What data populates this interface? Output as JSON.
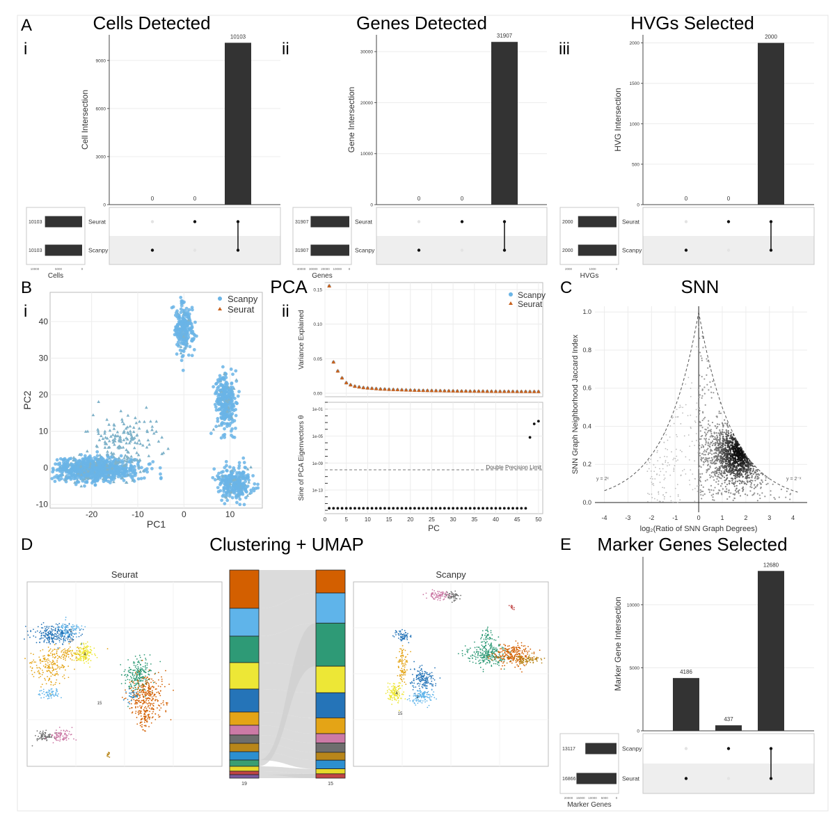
{
  "panel_letters": [
    "A",
    "B",
    "C",
    "D",
    "E"
  ],
  "subpanel_labels": [
    "i",
    "ii",
    "iii",
    "i",
    "ii"
  ],
  "section_titles": {
    "cells": "Cells Detected",
    "genes": "Genes Detected",
    "hvgs": "HVGs Selected",
    "pca": "PCA",
    "snn": "SNN",
    "clustering": "Clustering + UMAP",
    "markers": "Marker Genes Selected"
  },
  "colors": {
    "bar": "#333333",
    "scanpy": "#6ab4e6",
    "seurat": "#c8621e",
    "grid": "#ececec",
    "shade": "#eeeeee"
  },
  "chart_data": [
    {
      "id": "upset_cells",
      "type": "bar",
      "title": "Cells Detected",
      "ylabel": "Cell Intersection",
      "xlabel": "Cells",
      "ylim": [
        0,
        10600
      ],
      "yticks": [
        0,
        3000,
        6000,
        9000
      ],
      "categories": [
        "Scanpy only",
        "Seurat only",
        "Both"
      ],
      "values": [
        0,
        0,
        10103
      ],
      "set_names": [
        "Seurat",
        "Scanpy"
      ],
      "set_sizes": [
        10103,
        10103
      ],
      "set_ticks": [
        "10000",
        "5000",
        "0"
      ]
    },
    {
      "id": "upset_genes",
      "type": "bar",
      "title": "Genes Detected",
      "ylabel": "Gene Intersection",
      "xlabel": "Genes",
      "ylim": [
        0,
        33300
      ],
      "yticks": [
        0,
        10000,
        20000,
        30000
      ],
      "categories": [
        "Scanpy only",
        "Seurat only",
        "Both"
      ],
      "values": [
        0,
        0,
        31907
      ],
      "set_names": [
        "Seurat",
        "Scanpy"
      ],
      "set_sizes": [
        31907,
        31907
      ],
      "set_ticks": [
        "40000",
        "30000",
        "20000",
        "10000",
        "0"
      ]
    },
    {
      "id": "upset_hvgs",
      "type": "bar",
      "title": "HVGs Selected",
      "ylabel": "HVG Intersection",
      "xlabel": "HVGs",
      "ylim": [
        0,
        2100
      ],
      "yticks": [
        0,
        500,
        1000,
        1500,
        2000
      ],
      "categories": [
        "Scanpy only",
        "Seurat only",
        "Both"
      ],
      "values": [
        0,
        0,
        2000
      ],
      "set_names": [
        "Seurat",
        "Scanpy"
      ],
      "set_sizes": [
        2000,
        2000
      ],
      "set_ticks": [
        "2000",
        "1000",
        "0"
      ]
    },
    {
      "id": "pca_scatter",
      "type": "scatter",
      "xlabel": "PC1",
      "ylabel": "PC2",
      "xlim": [
        -29,
        17
      ],
      "ylim": [
        -11,
        48
      ],
      "xticks": [
        -20,
        -10,
        0,
        10
      ],
      "yticks": [
        -10,
        0,
        10,
        20,
        30,
        40
      ],
      "legend": [
        "Scanpy",
        "Seurat"
      ],
      "clusters": [
        {
          "label": "large left cluster",
          "cx": -19,
          "cy": -0.5,
          "sx": 4.5,
          "sy": 1.6
        },
        {
          "label": "top cluster",
          "cx": 0,
          "cy": 38,
          "sx": 1.0,
          "sy": 3.5
        },
        {
          "label": "mid-right cluster",
          "cx": 9,
          "cy": 18,
          "sx": 1.1,
          "sy": 3.5
        },
        {
          "label": "bottom-right cluster",
          "cx": 11,
          "cy": -4,
          "sx": 2.0,
          "sy": 2.2
        },
        {
          "label": "mid scatter",
          "cx": -13,
          "cy": 7,
          "sx": 3.5,
          "sy": 4
        }
      ]
    },
    {
      "id": "pca_variance",
      "type": "scatter",
      "xlabel": "PC",
      "ylabel": "Variance Explained",
      "xlim": [
        0,
        51
      ],
      "ylim": [
        -0.005,
        0.16
      ],
      "xticks": [
        0,
        5,
        10,
        15,
        20,
        25,
        30,
        35,
        40,
        45,
        50
      ],
      "yticks": [
        0.0,
        0.05,
        0.1,
        0.15
      ],
      "ytick_labels": [
        "0.00",
        "0.05",
        "0.10",
        "0.15"
      ],
      "x": [
        1,
        2,
        3,
        4,
        5,
        6,
        7,
        8,
        9,
        10,
        11,
        12,
        13,
        14,
        15,
        16,
        17,
        18,
        19,
        20,
        21,
        22,
        23,
        24,
        25,
        26,
        27,
        28,
        29,
        30,
        31,
        32,
        33,
        34,
        35,
        36,
        37,
        38,
        39,
        40,
        41,
        42,
        43,
        44,
        45,
        46,
        47,
        48,
        49,
        50
      ],
      "values": [
        0.155,
        0.045,
        0.032,
        0.022,
        0.015,
        0.012,
        0.01,
        0.009,
        0.008,
        0.0075,
        0.007,
        0.0065,
        0.006,
        0.0058,
        0.0055,
        0.0052,
        0.005,
        0.0048,
        0.0046,
        0.0044,
        0.0042,
        0.004,
        0.0039,
        0.0038,
        0.0037,
        0.0036,
        0.0035,
        0.0034,
        0.0033,
        0.0032,
        0.0031,
        0.003,
        0.003,
        0.0029,
        0.0029,
        0.0028,
        0.0028,
        0.0027,
        0.0027,
        0.0026,
        0.0026,
        0.0025,
        0.0025,
        0.0025,
        0.0024,
        0.0024,
        0.0024,
        0.0023,
        0.0023,
        0.0023
      ]
    },
    {
      "id": "pca_sine",
      "type": "scatter",
      "xlabel": "PC",
      "ylabel": "Sine of PCA Eigenvectors θ",
      "xlim": [
        0,
        51
      ],
      "ylim_log10": [
        -16.5,
        0
      ],
      "ytick_labels": [
        "1e-01",
        "1e-05",
        "1e-09",
        "1e-13"
      ],
      "ytick_log10": [
        -1,
        -5,
        -9,
        -13
      ],
      "reference_line_log10": -10,
      "reference_label": "Double Precision Limit",
      "x": [
        1,
        2,
        3,
        4,
        5,
        6,
        7,
        8,
        9,
        10,
        11,
        12,
        13,
        14,
        15,
        16,
        17,
        18,
        19,
        20,
        21,
        22,
        23,
        24,
        25,
        26,
        27,
        28,
        29,
        30,
        31,
        32,
        33,
        34,
        35,
        36,
        37,
        38,
        39,
        40,
        41,
        42,
        43,
        44,
        45,
        46,
        47,
        48,
        49,
        50
      ],
      "log10_values": [
        -15.7,
        -15.7,
        -15.7,
        -15.7,
        -15.7,
        -15.7,
        -15.7,
        -15.7,
        -15.7,
        -15.7,
        -15.7,
        -15.7,
        -15.7,
        -15.7,
        -15.7,
        -15.7,
        -15.7,
        -15.7,
        -15.7,
        -15.7,
        -15.7,
        -15.7,
        -15.7,
        -15.7,
        -15.7,
        -15.7,
        -15.7,
        -15.7,
        -15.7,
        -15.7,
        -15.7,
        -15.7,
        -15.7,
        -15.7,
        -15.7,
        -15.7,
        -15.7,
        -15.7,
        -15.7,
        -15.7,
        -15.7,
        -15.7,
        -15.7,
        -15.7,
        -15.7,
        -15.7,
        -15.7,
        -5.2,
        -3.2,
        -2.8
      ]
    },
    {
      "id": "snn",
      "type": "scatter",
      "xlabel": "log₂(Ratio of SNN Graph Degrees)",
      "ylabel": "SNN Graph Neighborhood Jaccard Index",
      "xlim": [
        -4.4,
        4.6
      ],
      "ylim": [
        0,
        1.03
      ],
      "xticks": [
        -4,
        -3,
        -2,
        -1,
        0,
        1,
        2,
        3,
        4
      ],
      "yticks": [
        0.0,
        0.2,
        0.4,
        0.6,
        0.8,
        1.0
      ],
      "ytick_labels": [
        "0.0",
        "0.2",
        "0.4",
        "0.6",
        "0.8",
        "1.0"
      ],
      "curve_left_label": "y = 2ˣ",
      "curve_right_label": "y = 2⁻ˣ",
      "density_peak": {
        "x": 1.7,
        "y": 0.26
      }
    },
    {
      "id": "umap_seurat",
      "type": "scatter",
      "title": "Seurat",
      "cluster_labels": [
        "2",
        "4",
        "15",
        "10"
      ]
    },
    {
      "id": "alluvial",
      "type": "bar",
      "left_total_label": "19",
      "right_total_label": "15",
      "left_colors": [
        "#d35f00",
        "#5fb4ea",
        "#2e9a76",
        "#ede736",
        "#2574b8",
        "#e4a416",
        "#cc7aa6",
        "#6e6e6e",
        "#b8861a",
        "#2c8fd0",
        "#3a9e72",
        "#e6d82a",
        "#c04444",
        "#7a5a9e"
      ],
      "left_values": [
        55,
        40,
        38,
        38,
        33,
        19,
        14,
        12,
        12,
        12,
        9,
        7,
        5,
        5
      ],
      "right_colors": [
        "#d35f00",
        "#5fb4ea",
        "#2e9a76",
        "#ede736",
        "#2574b8",
        "#e4a416",
        "#cc7aa6",
        "#6e6e6e",
        "#b8861a",
        "#2c8fd0",
        "#e6d82a",
        "#c04444"
      ],
      "right_values": [
        32,
        42,
        60,
        37,
        35,
        22,
        13,
        13,
        11,
        12,
        7,
        6
      ]
    },
    {
      "id": "umap_scanpy",
      "type": "scatter",
      "title": "Scanpy",
      "cluster_labels": [
        "4",
        "15",
        "2"
      ]
    },
    {
      "id": "upset_markers",
      "type": "bar",
      "title": "Marker Genes Selected",
      "ylabel": "Marker Gene Intersection",
      "xlabel": "Marker Genes",
      "ylim": [
        0,
        13800
      ],
      "yticks": [
        0,
        5000,
        10000
      ],
      "categories": [
        "Seurat only",
        "Scanpy only",
        "Both"
      ],
      "values": [
        4186,
        437,
        12680
      ],
      "set_names": [
        "Scanpy",
        "Seurat"
      ],
      "set_sizes": [
        13117,
        16866
      ],
      "set_ticks": [
        "20000",
        "15000",
        "10000",
        "5000",
        "0"
      ]
    }
  ]
}
